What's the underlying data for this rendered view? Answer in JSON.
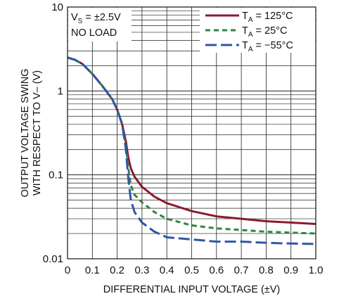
{
  "chart_data": {
    "type": "line",
    "xlabel": "DIFFERENTIAL INPUT VOLTAGE (±V)",
    "ylabel_lines": [
      "OUTPUT VOLTAGE SWING",
      "WITH RESPECT TO V– (V)"
    ],
    "xlim": [
      0,
      1.0
    ],
    "ylim": [
      0.01,
      10
    ],
    "yscale": "log",
    "grid": true,
    "x_ticks": [
      {
        "v": 0,
        "label": "0"
      },
      {
        "v": 0.1,
        "label": "0.1"
      },
      {
        "v": 0.2,
        "label": "0.2"
      },
      {
        "v": 0.3,
        "label": "0.3"
      },
      {
        "v": 0.4,
        "label": "0.4"
      },
      {
        "v": 0.5,
        "label": "0.5"
      },
      {
        "v": 0.6,
        "label": "0.6"
      },
      {
        "v": 0.7,
        "label": "0.7"
      },
      {
        "v": 0.8,
        "label": "0.8"
      },
      {
        "v": 0.9,
        "label": "0.9"
      },
      {
        "v": 1.0,
        "label": "1.0"
      }
    ],
    "y_ticks": [
      {
        "v": 10,
        "label": "10"
      },
      {
        "v": 1,
        "label": "1"
      },
      {
        "v": 0.1,
        "label": "0.1"
      },
      {
        "v": 0.01,
        "label": "0.01"
      }
    ],
    "conditions": {
      "line1_main": "V",
      "line1_sub": "S",
      "line1_rest": " = ±2.5V",
      "line2": "NO LOAD"
    },
    "legend_position": "top-right",
    "series": [
      {
        "label_main": "T",
        "label_sub": "A",
        "label_rest": " = 125°C",
        "color": "#8a1a30",
        "dash": "",
        "points": [
          [
            0,
            2.5
          ],
          [
            0.03,
            2.35
          ],
          [
            0.06,
            2.1
          ],
          [
            0.1,
            1.6
          ],
          [
            0.14,
            1.15
          ],
          [
            0.18,
            0.8
          ],
          [
            0.2,
            0.6
          ],
          [
            0.22,
            0.4
          ],
          [
            0.235,
            0.25
          ],
          [
            0.245,
            0.16
          ],
          [
            0.255,
            0.12
          ],
          [
            0.27,
            0.095
          ],
          [
            0.3,
            0.072
          ],
          [
            0.35,
            0.055
          ],
          [
            0.4,
            0.046
          ],
          [
            0.5,
            0.037
          ],
          [
            0.6,
            0.032
          ],
          [
            0.7,
            0.03
          ],
          [
            0.8,
            0.028
          ],
          [
            0.9,
            0.027
          ],
          [
            1.0,
            0.026
          ]
        ]
      },
      {
        "label_main": "T",
        "label_sub": "A",
        "label_rest": " = 25°C",
        "color": "#2e8540",
        "dash": "7,5",
        "points": [
          [
            0,
            2.5
          ],
          [
            0.03,
            2.35
          ],
          [
            0.06,
            2.1
          ],
          [
            0.1,
            1.6
          ],
          [
            0.14,
            1.15
          ],
          [
            0.18,
            0.8
          ],
          [
            0.2,
            0.6
          ],
          [
            0.22,
            0.4
          ],
          [
            0.235,
            0.22
          ],
          [
            0.245,
            0.12
          ],
          [
            0.255,
            0.075
          ],
          [
            0.27,
            0.058
          ],
          [
            0.3,
            0.047
          ],
          [
            0.35,
            0.036
          ],
          [
            0.4,
            0.03
          ],
          [
            0.5,
            0.025
          ],
          [
            0.6,
            0.023
          ],
          [
            0.7,
            0.022
          ],
          [
            0.8,
            0.021
          ],
          [
            0.9,
            0.0205
          ],
          [
            1.0,
            0.02
          ]
        ]
      },
      {
        "label_main": "T",
        "label_sub": "A",
        "label_rest": " = −55°C",
        "color": "#2f55a8",
        "dash": "16,6",
        "points": [
          [
            0,
            2.5
          ],
          [
            0.03,
            2.35
          ],
          [
            0.06,
            2.1
          ],
          [
            0.1,
            1.6
          ],
          [
            0.14,
            1.15
          ],
          [
            0.18,
            0.8
          ],
          [
            0.2,
            0.6
          ],
          [
            0.22,
            0.4
          ],
          [
            0.235,
            0.2
          ],
          [
            0.245,
            0.09
          ],
          [
            0.255,
            0.05
          ],
          [
            0.27,
            0.036
          ],
          [
            0.3,
            0.027
          ],
          [
            0.35,
            0.021
          ],
          [
            0.4,
            0.018
          ],
          [
            0.5,
            0.017
          ],
          [
            0.6,
            0.016
          ],
          [
            0.7,
            0.016
          ],
          [
            0.8,
            0.0155
          ],
          [
            0.9,
            0.0152
          ],
          [
            1.0,
            0.015
          ]
        ]
      }
    ]
  }
}
